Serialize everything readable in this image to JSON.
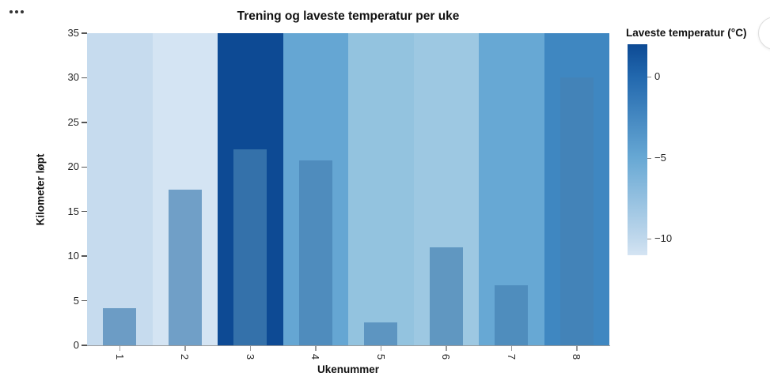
{
  "ui": {
    "more_options_icon": "more-options-ellipsis",
    "floating_button_icon": "floating-action-button-partial"
  },
  "chart_data": {
    "type": "bar",
    "title": "Trening og laveste temperatur per uke",
    "xlabel": "Ukenummer",
    "ylabel": "Kilometer løpt",
    "ylim": [
      0,
      35
    ],
    "yticks": [
      0,
      5,
      10,
      15,
      20,
      25,
      30,
      35
    ],
    "categories": [
      "1",
      "2",
      "3",
      "4",
      "5",
      "6",
      "7",
      "8"
    ],
    "series": [
      {
        "name": "Kilometer løpt",
        "values": [
          4.2,
          17.5,
          22,
          20.7,
          2.6,
          11,
          6.7,
          30
        ]
      },
      {
        "name": "Laveste temperatur (°C)",
        "values": [
          -10,
          -11,
          2,
          -5,
          -7.5,
          -8,
          -5,
          -2
        ]
      }
    ],
    "grid": false,
    "band_colors": [
      "#c6dbee",
      "#d4e4f3",
      "#0d4a94",
      "#65a6d3",
      "#93c3df",
      "#9dc8e2",
      "#67a8d4",
      "#3f87c1"
    ],
    "bar_overlay_color": "rgba(70,130,180,0.7)",
    "legend": {
      "title": "Laveste temperatur (°C)",
      "position": "right",
      "domain": [
        2,
        -11
      ],
      "ticks": [
        0,
        -5,
        -10
      ],
      "gradient_stops": [
        {
          "t": 2,
          "color": "#0d4a94"
        },
        {
          "t": 0,
          "color": "#2268ae"
        },
        {
          "t": -5,
          "color": "#67a8d4"
        },
        {
          "t": -10,
          "color": "#c0d8ec"
        },
        {
          "t": -11,
          "color": "#d4e4f3"
        }
      ]
    }
  }
}
